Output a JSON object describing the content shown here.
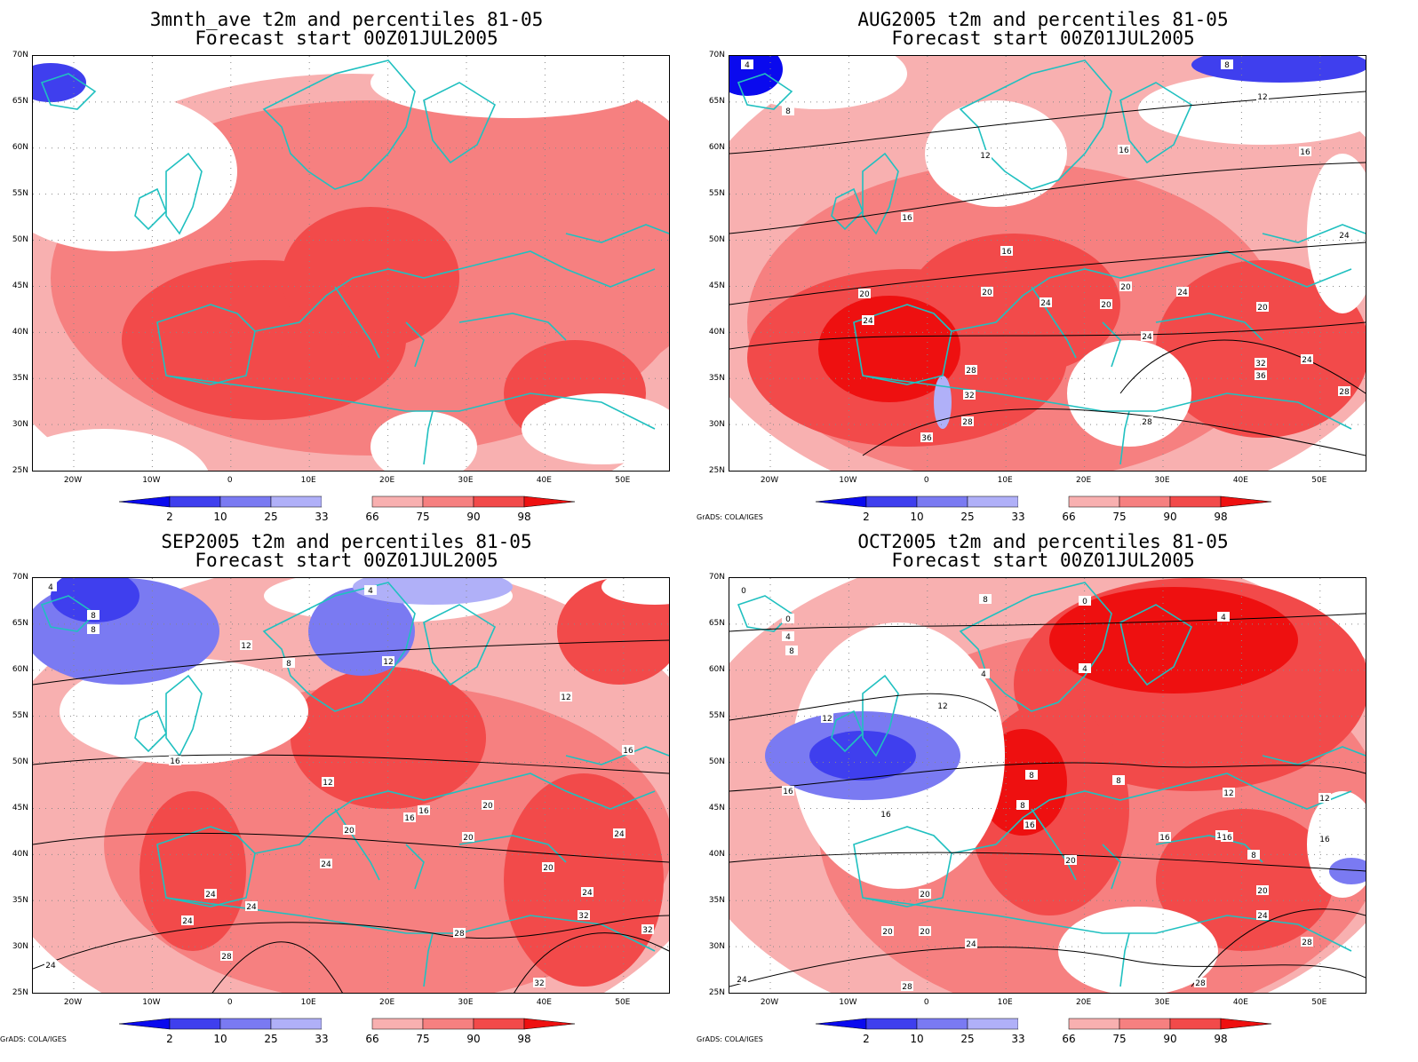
{
  "colors": {
    "very_low": "#0a0aee",
    "low": "#3f3fee",
    "mid_low": "#7a7af2",
    "below": "#b0b0f8",
    "neutral": "#ffffff",
    "above": "#f8b0b0",
    "mid_high": "#f68080",
    "high": "#f24a4a",
    "very_high": "#ee1010",
    "coast": "#20c0c0",
    "contour": "#000000"
  },
  "legend": {
    "labels": [
      "2",
      "10",
      "25",
      "33",
      "66",
      "75",
      "90",
      "98"
    ]
  },
  "axes": {
    "lat_labels": [
      "70N",
      "65N",
      "60N",
      "55N",
      "50N",
      "45N",
      "40N",
      "35N",
      "30N",
      "25N"
    ],
    "lon_labels": [
      "20W",
      "10W",
      "0",
      "10E",
      "20E",
      "30E",
      "40E",
      "50E"
    ]
  },
  "credit": "GrADS: COLA/IGES",
  "panels": [
    {
      "title": "3mnth_ave t2m and percentiles 81-05",
      "subtitle": "Forecast start 00Z01JUL2005",
      "contour_labels": [],
      "show_credit": false
    },
    {
      "title": "AUG2005 t2m and percentiles 81-05",
      "subtitle": "Forecast start 00Z01JUL2005",
      "contour_labels": [
        "4",
        "8",
        "8",
        "12",
        "12",
        "16",
        "16",
        "16",
        "16",
        "20",
        "20",
        "20",
        "20",
        "20",
        "24",
        "24",
        "24",
        "24",
        "24",
        "24",
        "28",
        "28",
        "28",
        "28",
        "32",
        "32",
        "36",
        "36"
      ],
      "show_credit": true
    },
    {
      "title": "SEP2005 t2m and percentiles 81-05",
      "subtitle": "Forecast start 00Z01JUL2005",
      "contour_labels": [
        "4",
        "4",
        "8",
        "8",
        "8",
        "12",
        "12",
        "12",
        "12",
        "16",
        "16",
        "16",
        "16",
        "20",
        "20",
        "20",
        "20",
        "24",
        "24",
        "24",
        "24",
        "24",
        "24",
        "28",
        "28",
        "32",
        "32",
        "32",
        "24"
      ],
      "show_credit": true
    },
    {
      "title": "OCT2005 t2m and percentiles 81-05",
      "subtitle": "Forecast start 00Z01JUL2005",
      "contour_labels": [
        "0",
        "0",
        "4",
        "8",
        "8",
        "0",
        "4",
        "4",
        "4",
        "8",
        "8",
        "8",
        "12",
        "12",
        "12",
        "12",
        "12",
        "16",
        "16",
        "16",
        "16",
        "16",
        "16",
        "20",
        "20",
        "20",
        "20",
        "20",
        "24",
        "24",
        "24",
        "28",
        "28",
        "28",
        "8"
      ],
      "show_credit": true
    }
  ]
}
